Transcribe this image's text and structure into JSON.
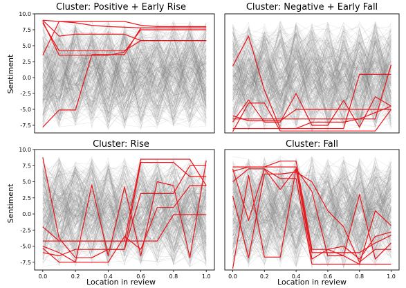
{
  "figure": {
    "ylabel": "Sentiment",
    "xlabel": "Location in review"
  },
  "colors": {
    "background_lines": "#808080",
    "highlight_lines": "#e8141a"
  },
  "chart_data": [
    {
      "type": "line",
      "title": "Cluster: Positive + Early Rise",
      "xlabel": "",
      "ylabel": "Sentiment",
      "xlim": [
        -0.05,
        1.05
      ],
      "ylim": [
        -8.7,
        10.0
      ],
      "xticks": [],
      "yticks": [
        -7.5,
        -5.0,
        -2.5,
        0.0,
        2.5,
        5.0,
        7.5,
        10.0
      ],
      "x": [
        0.0,
        0.1,
        0.2,
        0.3,
        0.4,
        0.5,
        0.6,
        0.7,
        0.8,
        0.9,
        1.0
      ],
      "background_band": [
        -8.3,
        9.0
      ],
      "series": [
        {
          "values": [
            9.0,
            8.8,
            8.6,
            8.2,
            8.0,
            7.9,
            7.8,
            7.8,
            7.8,
            7.8,
            7.8
          ]
        },
        {
          "values": [
            -7.8,
            -5.1,
            -5.1,
            3.6,
            3.6,
            3.6,
            7.8,
            7.8,
            7.8,
            7.8,
            7.8
          ]
        },
        {
          "values": [
            3.5,
            8.8,
            8.8,
            8.8,
            8.8,
            8.8,
            8.2,
            8.0,
            8.0,
            8.0,
            8.0
          ]
        },
        {
          "values": [
            8.8,
            3.5,
            3.5,
            3.5,
            3.5,
            4.0,
            7.5,
            7.5,
            7.5,
            7.5,
            7.5
          ]
        },
        {
          "values": [
            9.0,
            6.5,
            6.8,
            6.8,
            6.8,
            6.8,
            5.8,
            5.8,
            5.8,
            5.8,
            5.8
          ]
        },
        {
          "values": [
            8.6,
            4.2,
            4.2,
            4.2,
            4.2,
            4.2,
            5.8,
            5.8,
            5.8,
            5.8,
            5.8
          ]
        }
      ]
    },
    {
      "type": "line",
      "title": "Cluster: Negative + Early Fall",
      "xlabel": "",
      "ylabel": "",
      "xlim": [
        -0.05,
        1.05
      ],
      "ylim": [
        -8.7,
        10.0
      ],
      "xticks": [],
      "yticks": [],
      "x": [
        0.0,
        0.1,
        0.2,
        0.3,
        0.4,
        0.5,
        0.6,
        0.7,
        0.8,
        0.9,
        1.0
      ],
      "background_band": [
        -8.6,
        9.0
      ],
      "series": [
        {
          "values": [
            1.8,
            6.5,
            -2.0,
            -8.0,
            -8.0,
            -8.0,
            -8.0,
            -8.0,
            0.5,
            0.5,
            0.5
          ]
        },
        {
          "values": [
            -7.0,
            -3.5,
            -7.0,
            -7.0,
            -2.5,
            -7.5,
            -7.5,
            -3.6,
            -7.8,
            -3.0,
            -4.5
          ]
        },
        {
          "values": [
            -6.0,
            -6.8,
            -6.8,
            -6.8,
            -5.0,
            -5.0,
            -5.0,
            -5.0,
            -5.0,
            -5.0,
            -5.0
          ]
        },
        {
          "values": [
            -6.5,
            -6.5,
            -6.5,
            -6.5,
            -6.5,
            -6.5,
            -6.5,
            -6.5,
            -6.5,
            -6.5,
            2.0
          ]
        },
        {
          "values": [
            -8.5,
            -4.0,
            -4.0,
            -8.4,
            -8.4,
            -8.4,
            -8.4,
            -8.4,
            -8.4,
            -8.4,
            -5.0
          ]
        },
        {
          "values": [
            -8.0,
            -8.0,
            -8.0,
            -8.0,
            -8.0,
            -7.0,
            -7.0,
            -7.0,
            -6.5,
            -5.5,
            -4.5
          ]
        }
      ]
    },
    {
      "type": "line",
      "title": "Cluster: Rise",
      "xlabel": "Location in review",
      "ylabel": "Sentiment",
      "xlim": [
        -0.05,
        1.05
      ],
      "ylim": [
        -8.7,
        10.0
      ],
      "xticks": [
        0.0,
        0.2,
        0.4,
        0.6,
        0.8,
        1.0
      ],
      "yticks": [
        -7.5,
        -5.0,
        -2.5,
        0.0,
        2.5,
        5.0,
        7.5,
        10.0
      ],
      "x": [
        0.0,
        0.1,
        0.2,
        0.3,
        0.4,
        0.5,
        0.6,
        0.7,
        0.8,
        0.9,
        1.0
      ],
      "background_band": [
        -8.3,
        9.0
      ],
      "series": [
        {
          "values": [
            -2.0,
            -4.2,
            -4.2,
            -4.2,
            -4.2,
            -4.2,
            8.5,
            8.5,
            8.5,
            8.5,
            4.4
          ]
        },
        {
          "values": [
            8.8,
            -3.8,
            -6.8,
            -6.8,
            -5.5,
            -5.5,
            3.2,
            3.2,
            3.2,
            7.5,
            7.5
          ]
        },
        {
          "values": [
            -5.0,
            -6.0,
            -7.5,
            4.5,
            -6.5,
            4.2,
            -6.5,
            5.0,
            4.4,
            -6.8,
            8.3
          ]
        },
        {
          "values": [
            -6.0,
            -6.5,
            -5.5,
            -5.5,
            -5.5,
            -5.5,
            8.0,
            8.0,
            8.0,
            5.8,
            5.8
          ]
        },
        {
          "values": [
            -5.3,
            -7.5,
            -7.5,
            -7.5,
            -7.5,
            -3.5,
            -5.5,
            1.0,
            1.0,
            4.4,
            4.4
          ]
        },
        {
          "values": [
            -4.2,
            -4.2,
            -4.2,
            -4.2,
            -4.2,
            -4.2,
            -4.2,
            -4.2,
            -0.1,
            -0.1,
            -0.1
          ]
        }
      ]
    },
    {
      "type": "line",
      "title": "Cluster: Fall",
      "xlabel": "Location in review",
      "ylabel": "",
      "xlim": [
        -0.05,
        1.05
      ],
      "ylim": [
        -8.7,
        10.0
      ],
      "xticks": [
        0.0,
        0.2,
        0.4,
        0.6,
        0.8,
        1.0
      ],
      "yticks": [],
      "x": [
        0.0,
        0.1,
        0.2,
        0.3,
        0.4,
        0.5,
        0.6,
        0.7,
        0.8,
        0.9,
        1.0
      ],
      "background_band": [
        -8.5,
        9.0
      ],
      "series": [
        {
          "values": [
            7.3,
            7.3,
            7.3,
            8.2,
            8.2,
            -5.5,
            -5.5,
            -6.5,
            3.0,
            -7.0,
            -4.5
          ]
        },
        {
          "values": [
            7.0,
            -1.0,
            7.0,
            3.8,
            7.0,
            3.5,
            -6.5,
            -6.5,
            -7.8,
            0.5,
            -1.8
          ]
        },
        {
          "values": [
            6.6,
            7.3,
            7.3,
            7.3,
            7.3,
            -6.0,
            -6.0,
            -6.0,
            -6.0,
            -4.5,
            -3.3
          ]
        },
        {
          "values": [
            -8.5,
            6.0,
            -6.7,
            -6.7,
            7.0,
            -7.0,
            -5.5,
            -5.0,
            -7.0,
            -3.5,
            -2.8
          ]
        },
        {
          "values": [
            2.8,
            -6.8,
            6.2,
            6.2,
            6.5,
            5.0,
            0.5,
            -2.0,
            -7.5,
            -5.5,
            -5.5
          ]
        },
        {
          "values": [
            5.0,
            7.0,
            7.0,
            5.5,
            5.5,
            -7.8,
            -7.8,
            -7.8,
            -7.8,
            -7.8,
            -7.8
          ]
        }
      ]
    }
  ]
}
